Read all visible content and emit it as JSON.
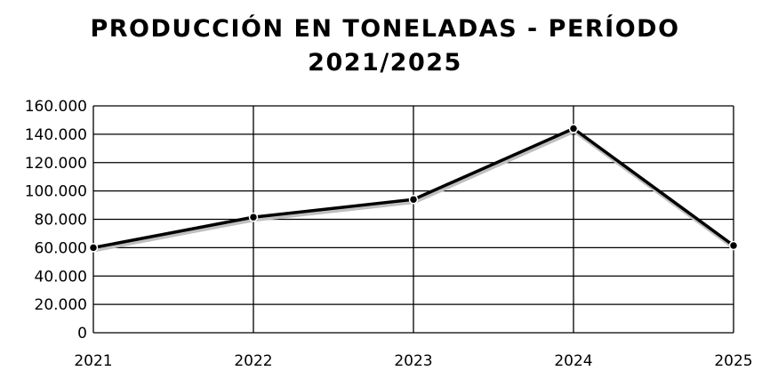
{
  "chart_data": {
    "type": "line",
    "title": "PRODUCCIÓN EN TONELADAS - PERÍODO 2021/2025",
    "title_lines": [
      "PRODUCCIÓN EN TONELADAS - PERÍODO",
      "2021/2025"
    ],
    "xlabel": "",
    "ylabel": "",
    "categories": [
      "2021",
      "2022",
      "2023",
      "2024",
      "2025"
    ],
    "series": [
      {
        "values": [
          60000,
          81500,
          94000,
          144000,
          61500
        ]
      }
    ],
    "ylim": [
      0,
      160000
    ],
    "yticks": [
      0,
      20000,
      40000,
      60000,
      80000,
      100000,
      120000,
      140000,
      160000
    ],
    "ytick_labels": [
      "0",
      "20.000",
      "40.000",
      "60.000",
      "80.000",
      "100.000",
      "120.000",
      "140.000",
      "160.000"
    ],
    "grid": true,
    "legend": "none",
    "colors": {
      "line": "#000000",
      "shadow": "#bfbfbf",
      "marker_fill": "#000000",
      "marker_stroke": "#ffffff",
      "grid": "#000000"
    }
  }
}
